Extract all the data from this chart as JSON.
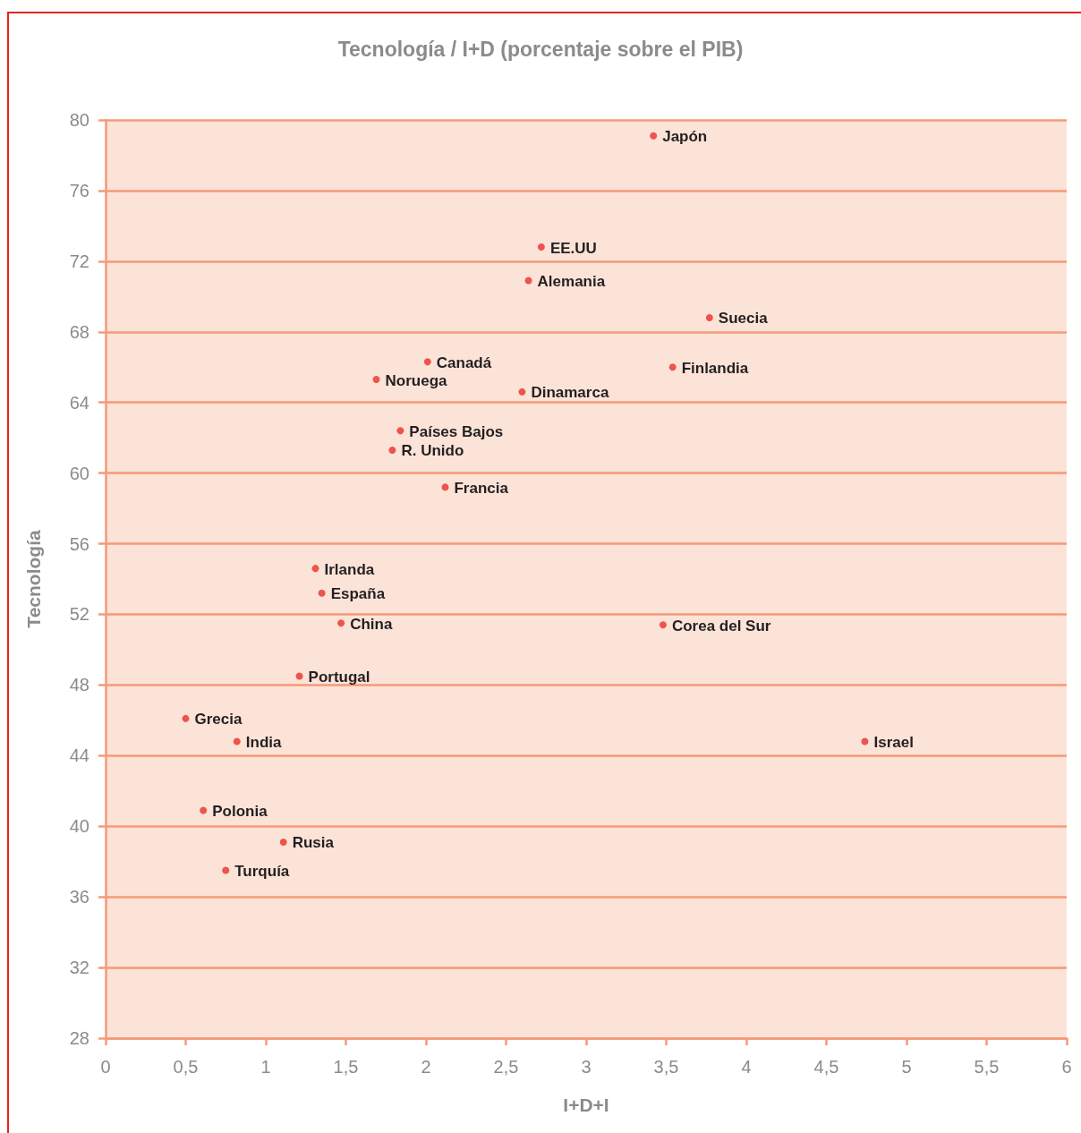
{
  "chart_data": {
    "type": "scatter",
    "title": "Tecnología / I+D (porcentaje sobre el PIB)",
    "xlabel": "I+D+I",
    "ylabel": "Tecnología",
    "x": [
      3.42,
      2.72,
      2.64,
      3.77,
      2.01,
      3.54,
      1.69,
      2.6,
      1.84,
      1.79,
      2.12,
      1.31,
      1.35,
      1.47,
      3.48,
      1.21,
      0.5,
      0.82,
      4.74,
      0.61,
      1.11,
      0.75
    ],
    "values": [
      79.1,
      72.8,
      70.9,
      68.8,
      66.3,
      66.0,
      65.3,
      64.6,
      62.4,
      61.3,
      59.2,
      54.6,
      53.2,
      51.5,
      51.4,
      48.5,
      46.1,
      44.8,
      44.8,
      40.9,
      39.1,
      37.5
    ],
    "color": "#e8302a",
    "marker": "circle",
    "xlim": [
      0,
      6
    ],
    "xticks": [
      0,
      {
        "value": 0.5,
        "label": "0,5"
      },
      1,
      {
        "value": 1.5,
        "label": "1,5"
      },
      2,
      {
        "value": 2.5,
        "label": "2,5"
      },
      3,
      {
        "value": 3.5,
        "label": "3,5"
      },
      4,
      {
        "value": 4.5,
        "label": "4,5"
      },
      5,
      {
        "value": 5.5,
        "label": "5,5"
      },
      6
    ],
    "ylim": [
      28,
      80
    ],
    "yticks": [
      28,
      32,
      36,
      40,
      44,
      48,
      52,
      56,
      60,
      64,
      68,
      72,
      76,
      80
    ],
    "grid": "y",
    "annotations": [
      {
        "text": "Japón",
        "x": 3.42,
        "y": 79.1
      },
      {
        "text": "EE.UU",
        "x": 2.72,
        "y": 72.8
      },
      {
        "text": "Alemania",
        "x": 2.64,
        "y": 70.9
      },
      {
        "text": "Suecia",
        "x": 3.77,
        "y": 68.8
      },
      {
        "text": "Canadá",
        "x": 2.01,
        "y": 66.3
      },
      {
        "text": "Finlandia",
        "x": 3.54,
        "y": 66.0
      },
      {
        "text": "Noruega",
        "x": 1.69,
        "y": 65.3
      },
      {
        "text": "Dinamarca",
        "x": 2.6,
        "y": 64.6
      },
      {
        "text": "Países Bajos",
        "x": 1.84,
        "y": 62.4
      },
      {
        "text": "R. Unido",
        "x": 1.79,
        "y": 61.3
      },
      {
        "text": "Francia",
        "x": 2.12,
        "y": 59.2
      },
      {
        "text": "Irlanda",
        "x": 1.31,
        "y": 54.6
      },
      {
        "text": "España",
        "x": 1.35,
        "y": 53.2
      },
      {
        "text": "China",
        "x": 1.47,
        "y": 51.5
      },
      {
        "text": "Corea del Sur",
        "x": 3.48,
        "y": 51.4
      },
      {
        "text": "Portugal",
        "x": 1.21,
        "y": 48.5
      },
      {
        "text": "Grecia",
        "x": 0.5,
        "y": 46.1
      },
      {
        "text": "India",
        "x": 0.82,
        "y": 44.8
      },
      {
        "text": "Israel",
        "x": 4.74,
        "y": 44.8
      },
      {
        "text": "Polonia",
        "x": 0.61,
        "y": 40.9
      },
      {
        "text": "Rusia",
        "x": 1.11,
        "y": 39.1
      },
      {
        "text": "Turquía",
        "x": 0.75,
        "y": 37.5
      }
    ]
  }
}
